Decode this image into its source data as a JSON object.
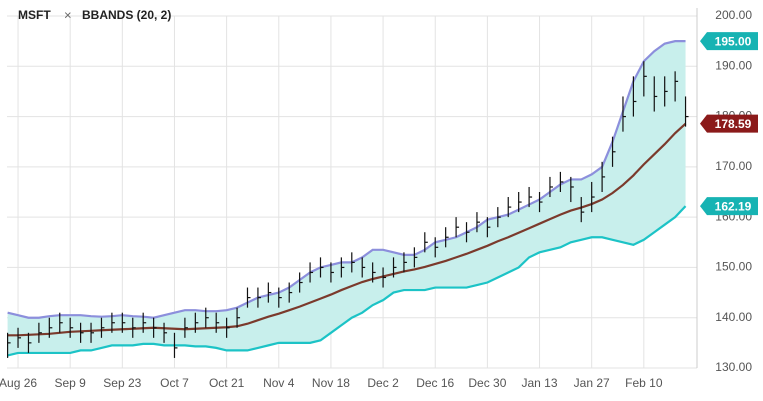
{
  "chart_data": {
    "type": "ohlc",
    "symbol": "MSFT",
    "indicator": "BBANDS (20, 2)",
    "ylim": [
      130,
      200
    ],
    "yticks": [
      {
        "value": 130,
        "label": "130.00"
      },
      {
        "value": 140,
        "label": "140.00"
      },
      {
        "value": 150,
        "label": "150.00"
      },
      {
        "value": 160,
        "label": "160.00"
      },
      {
        "value": 170,
        "label": "170.00"
      },
      {
        "value": 180,
        "label": "180.00"
      },
      {
        "value": 190,
        "label": "190.00"
      },
      {
        "value": 200,
        "label": "200.00"
      }
    ],
    "grid": true,
    "bar_color": "#111111",
    "fill": "#c8efec",
    "categories": [
      null,
      "Aug 26",
      null,
      null,
      null,
      null,
      "Sep 9",
      null,
      null,
      null,
      null,
      "Sep 23",
      null,
      null,
      null,
      null,
      "Oct 7",
      null,
      null,
      null,
      null,
      "Oct 21",
      null,
      null,
      null,
      null,
      "Nov 4",
      null,
      null,
      null,
      null,
      "Nov 18",
      null,
      null,
      null,
      null,
      "Dec 2",
      null,
      null,
      null,
      null,
      "Dec 16",
      null,
      null,
      null,
      null,
      "Dec 30",
      null,
      null,
      null,
      null,
      "Jan 13",
      null,
      null,
      null,
      null,
      "Jan 27",
      null,
      null,
      null,
      null,
      "Feb 10",
      null,
      null,
      null,
      null
    ],
    "high": [
      137,
      138,
      137,
      139,
      140,
      141,
      140,
      139,
      139,
      140,
      141,
      141,
      140,
      141,
      140,
      139,
      137,
      140,
      141,
      142,
      141,
      140,
      142,
      146,
      146,
      147,
      146,
      147,
      149,
      151,
      152,
      151,
      152,
      153,
      152,
      151,
      150,
      152,
      153,
      154,
      157,
      156,
      158,
      160,
      159,
      161,
      160,
      162,
      164,
      165,
      166,
      165,
      168,
      169,
      168,
      164,
      167,
      171,
      176,
      184,
      188,
      191,
      188,
      188,
      189,
      184
    ],
    "low": [
      132,
      134,
      133,
      135,
      136,
      137,
      136,
      135,
      135,
      136,
      137,
      137,
      136,
      137,
      136,
      135,
      132,
      136,
      137,
      138,
      137,
      136,
      138,
      142,
      142,
      143,
      142,
      143,
      145,
      147,
      148,
      147,
      148,
      149,
      148,
      147,
      146,
      148,
      149,
      150,
      153,
      152,
      154,
      156,
      155,
      157,
      156,
      158,
      160,
      161,
      162,
      161,
      164,
      165,
      163,
      159,
      161,
      165,
      170,
      177,
      180,
      184,
      181,
      182,
      183,
      178
    ],
    "close": [
      135,
      136,
      135,
      137,
      138,
      139,
      138,
      137,
      137,
      138,
      139,
      139,
      138,
      139,
      138,
      137,
      134,
      138,
      139,
      140,
      139,
      138,
      140,
      144,
      144,
      145,
      144,
      145,
      147,
      149,
      150,
      149,
      150,
      151,
      150,
      149,
      148,
      150,
      151,
      152,
      155,
      154,
      156,
      158,
      157,
      159,
      158,
      160,
      162,
      163,
      164,
      163,
      166,
      167,
      166,
      161,
      164,
      168,
      173,
      180,
      183,
      188,
      184,
      185,
      187,
      180
    ],
    "bands": {
      "upper": {
        "color": "#8c8fdc",
        "label_color": "#17b3b3",
        "values": [
          141,
          140.5,
          140,
          140,
          140.3,
          140.5,
          140.5,
          140.5,
          140.3,
          140.2,
          140.3,
          140.5,
          140.3,
          140.2,
          140,
          140.5,
          141,
          141.5,
          141.5,
          141.3,
          141.3,
          141.5,
          142,
          143,
          144,
          144.5,
          145,
          146,
          147.5,
          149,
          150,
          150.5,
          151,
          151,
          152,
          153.5,
          153.5,
          153,
          152.5,
          152.5,
          153.5,
          155,
          155.5,
          156,
          157,
          158,
          159.5,
          160,
          160.5,
          161.5,
          162.5,
          163.5,
          165,
          166.5,
          167.5,
          167.5,
          168.5,
          170,
          175,
          181,
          187,
          191,
          193,
          194.5,
          195,
          195
        ],
        "value_labels": [
          null,
          null,
          null,
          null,
          null,
          null,
          null,
          null,
          null,
          null,
          null,
          null,
          null,
          null,
          null,
          null,
          null,
          null,
          null,
          null,
          null,
          null,
          null,
          null,
          null,
          null,
          null,
          null,
          null,
          null,
          null,
          null,
          null,
          null,
          null,
          null,
          null,
          null,
          null,
          null,
          null,
          null,
          null,
          null,
          null,
          null,
          null,
          null,
          null,
          null,
          null,
          null,
          null,
          null,
          null,
          null,
          null,
          null,
          null,
          null,
          null,
          null,
          null,
          null,
          null,
          "195.00"
        ]
      },
      "middle": {
        "color": "#7b3a2c",
        "label_color": "#8b1a1a",
        "values": [
          136.5,
          136.5,
          136.6,
          136.7,
          136.8,
          137,
          137.2,
          137.3,
          137.4,
          137.5,
          137.6,
          137.7,
          137.8,
          137.9,
          138,
          137.9,
          137.8,
          137.7,
          137.8,
          137.9,
          138,
          138.1,
          138.3,
          138.8,
          139.5,
          140.2,
          140.8,
          141.5,
          142.2,
          143,
          143.8,
          144.6,
          145.5,
          146.3,
          147.1,
          147.7,
          148.2,
          148.7,
          149.2,
          149.6,
          150.1,
          150.7,
          151.3,
          152,
          152.7,
          153.5,
          154.3,
          155.2,
          156,
          156.9,
          157.8,
          158.7,
          159.6,
          160.5,
          161.3,
          161.9,
          162.6,
          163.5,
          164.8,
          166.4,
          168.3,
          170.5,
          172.5,
          174.5,
          176.7,
          178.59
        ]
      },
      "lower": {
        "color": "#1cc3c6",
        "label_color": "#17b3b3",
        "values": [
          132.5,
          133,
          133,
          133,
          133,
          133,
          133,
          133.5,
          133.5,
          134,
          134.5,
          134.5,
          134.5,
          134.8,
          134.8,
          134.5,
          134.5,
          134.5,
          134.3,
          134.3,
          134,
          133.5,
          133.5,
          133.5,
          134,
          134.5,
          135,
          135,
          135,
          135,
          135.5,
          137,
          138.5,
          140,
          141,
          142.5,
          143.5,
          145,
          145.5,
          145.5,
          145.5,
          146,
          146,
          146,
          146,
          146.5,
          147,
          148,
          149,
          150,
          152,
          153,
          153.5,
          154,
          155,
          155.5,
          156,
          156,
          155.5,
          155,
          154.5,
          155.5,
          157,
          158.5,
          160,
          162.19
        ]
      }
    }
  }
}
